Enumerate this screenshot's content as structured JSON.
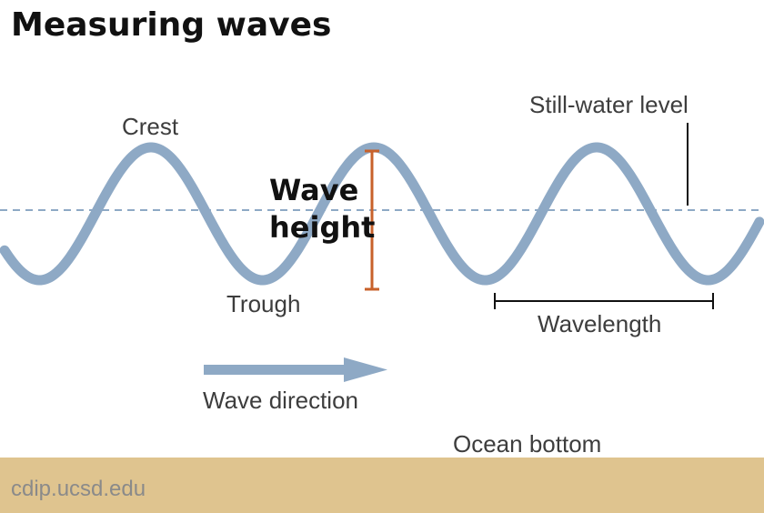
{
  "title": "Measuring waves",
  "labels": {
    "crest": "Crest",
    "trough": "Trough",
    "still_water_level": "Still-water level",
    "wave_height_line1": "Wave",
    "wave_height_line2": "height",
    "wavelength": "Wavelength",
    "wave_direction": "Wave direction",
    "ocean_bottom": "Ocean bottom"
  },
  "credit": "cdip.ucsd.edu",
  "colors": {
    "wave": "#8ea9c5",
    "still_water_line": "#8ea9c5",
    "wave_height_marker": "#c8612a",
    "ocean_bottom": "#dfc48f",
    "text": "#3d3d3d",
    "title": "#111111"
  }
}
